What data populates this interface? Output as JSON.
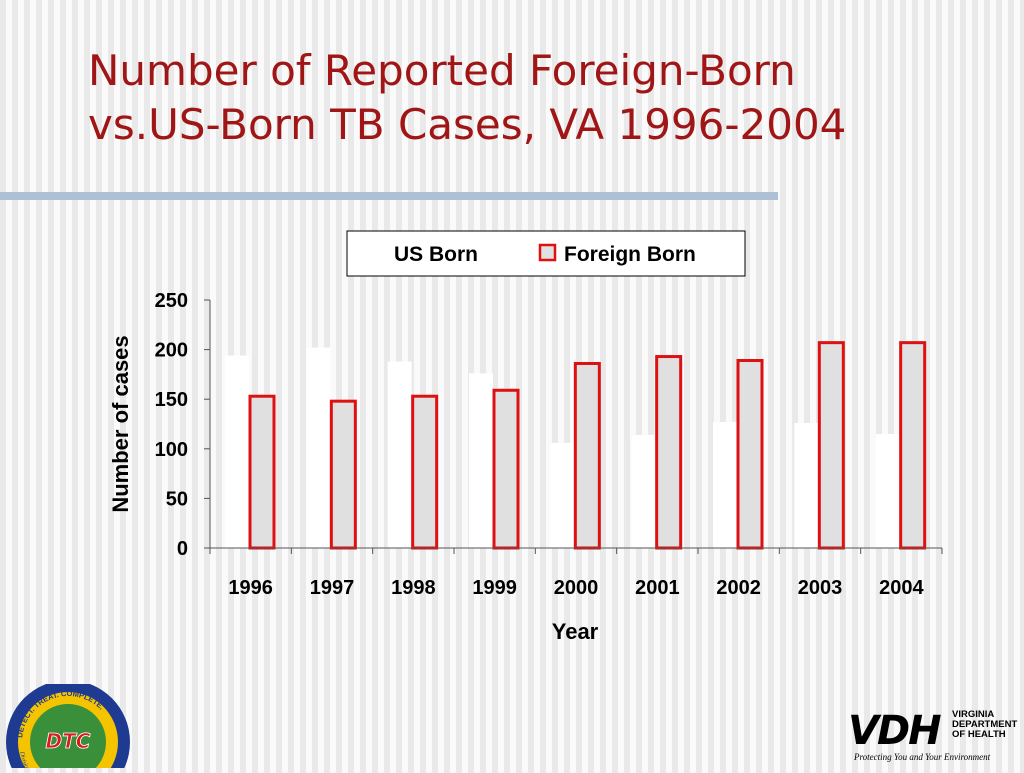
{
  "slide": {
    "title_line1": "Number of Reported Foreign-Born",
    "title_line2": "vs.US-Born TB Cases, VA 1996-2004"
  },
  "chart_data": {
    "type": "bar",
    "categories": [
      "1996",
      "1997",
      "1998",
      "1999",
      "2000",
      "2001",
      "2002",
      "2003",
      "2004"
    ],
    "series": [
      {
        "name": "US Born",
        "values": [
          194,
          202,
          188,
          176,
          106,
          114,
          127,
          126,
          115
        ],
        "fill": "#ffffff",
        "stroke": "none"
      },
      {
        "name": "Foreign Born",
        "values": [
          153,
          148,
          153,
          159,
          186,
          193,
          189,
          207,
          207
        ],
        "fill": "#e0e0e0",
        "stroke": "#dd1111"
      }
    ],
    "xlabel": "Year",
    "ylabel": "Number of cases",
    "ylim": [
      0,
      250
    ],
    "yticks": [
      "0",
      "50",
      "100",
      "150",
      "200",
      "250"
    ],
    "legend": "top",
    "grid": false
  },
  "logos": {
    "dtc": {
      "mark": "DTC",
      "ring_top": "DETECT. TREAT. COMPLETE.",
      "ring_bottom": "Division of Tuberculosis Control"
    },
    "vdh": {
      "mark": "VDH",
      "name_line1": "VIRGINIA",
      "name_line2": "DEPARTMENT",
      "name_line3": "OF HEALTH",
      "tagline": "Protecting You and Your Environment"
    }
  },
  "colors": {
    "title": "#a01515",
    "rule": "#aebfd6",
    "foreign_stroke": "#dd1111",
    "foreign_fill": "#e0e0e0",
    "us_fill": "#ffffff"
  }
}
